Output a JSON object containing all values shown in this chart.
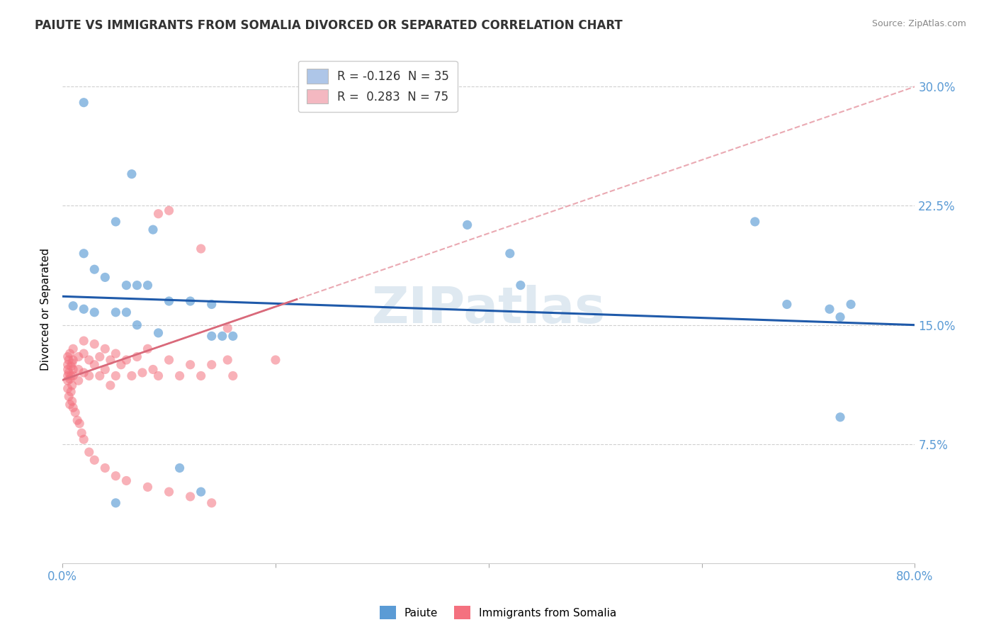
{
  "title": "PAIUTE VS IMMIGRANTS FROM SOMALIA DIVORCED OR SEPARATED CORRELATION CHART",
  "source": "Source: ZipAtlas.com",
  "ylabel": "Divorced or Separated",
  "watermark": "ZIPatlas",
  "legend1_label": "R = -0.126  N = 35",
  "legend2_label": "R =  0.283  N = 75",
  "legend1_color": "#aec6e8",
  "legend2_color": "#f4b8c1",
  "paiute_color": "#5b9bd5",
  "somalia_color": "#f4717f",
  "paiute_line_color": "#1f5aaa",
  "somalia_line_color": "#d9697a",
  "somalia_dashed_color": "#e8a0aa",
  "grid_color": "#d0d0d0",
  "ytick_color": "#5b9bd5",
  "ytick_labels": [
    "7.5%",
    "15.0%",
    "22.5%",
    "30.0%"
  ],
  "yticks": [
    0.075,
    0.15,
    0.225,
    0.3
  ],
  "xlim": [
    0.0,
    0.8
  ],
  "ylim": [
    0.0,
    0.32
  ],
  "paiute_x": [
    0.02,
    0.065,
    0.05,
    0.085,
    0.02,
    0.03,
    0.04,
    0.06,
    0.07,
    0.08,
    0.01,
    0.02,
    0.03,
    0.05,
    0.06,
    0.07,
    0.09,
    0.1,
    0.12,
    0.14,
    0.38,
    0.42,
    0.43,
    0.65,
    0.68,
    0.72,
    0.73,
    0.74,
    0.73,
    0.14,
    0.15,
    0.16,
    0.11,
    0.13,
    0.05
  ],
  "paiute_y": [
    0.29,
    0.245,
    0.215,
    0.21,
    0.195,
    0.185,
    0.18,
    0.175,
    0.175,
    0.175,
    0.162,
    0.16,
    0.158,
    0.158,
    0.158,
    0.15,
    0.145,
    0.165,
    0.165,
    0.163,
    0.213,
    0.195,
    0.175,
    0.215,
    0.163,
    0.16,
    0.155,
    0.163,
    0.092,
    0.143,
    0.143,
    0.143,
    0.06,
    0.045,
    0.038
  ],
  "somalia_x": [
    0.005,
    0.005,
    0.005,
    0.005,
    0.005,
    0.006,
    0.006,
    0.007,
    0.007,
    0.008,
    0.008,
    0.009,
    0.009,
    0.01,
    0.01,
    0.01,
    0.01,
    0.015,
    0.015,
    0.015,
    0.02,
    0.02,
    0.02,
    0.025,
    0.025,
    0.03,
    0.03,
    0.035,
    0.035,
    0.04,
    0.04,
    0.045,
    0.045,
    0.05,
    0.05,
    0.055,
    0.06,
    0.065,
    0.07,
    0.075,
    0.08,
    0.085,
    0.09,
    0.1,
    0.11,
    0.12,
    0.13,
    0.14,
    0.155,
    0.16,
    0.005,
    0.006,
    0.007,
    0.008,
    0.009,
    0.01,
    0.012,
    0.014,
    0.016,
    0.018,
    0.02,
    0.025,
    0.03,
    0.04,
    0.05,
    0.06,
    0.08,
    0.1,
    0.12,
    0.14,
    0.09,
    0.1,
    0.13,
    0.155,
    0.2
  ],
  "somalia_y": [
    0.125,
    0.13,
    0.122,
    0.118,
    0.115,
    0.128,
    0.12,
    0.132,
    0.116,
    0.124,
    0.118,
    0.126,
    0.112,
    0.135,
    0.128,
    0.122,
    0.118,
    0.13,
    0.122,
    0.115,
    0.14,
    0.132,
    0.12,
    0.128,
    0.118,
    0.138,
    0.125,
    0.13,
    0.118,
    0.135,
    0.122,
    0.128,
    0.112,
    0.132,
    0.118,
    0.125,
    0.128,
    0.118,
    0.13,
    0.12,
    0.135,
    0.122,
    0.118,
    0.128,
    0.118,
    0.125,
    0.118,
    0.125,
    0.128,
    0.118,
    0.11,
    0.105,
    0.1,
    0.108,
    0.102,
    0.098,
    0.095,
    0.09,
    0.088,
    0.082,
    0.078,
    0.07,
    0.065,
    0.06,
    0.055,
    0.052,
    0.048,
    0.045,
    0.042,
    0.038,
    0.22,
    0.222,
    0.198,
    0.148,
    0.128
  ]
}
